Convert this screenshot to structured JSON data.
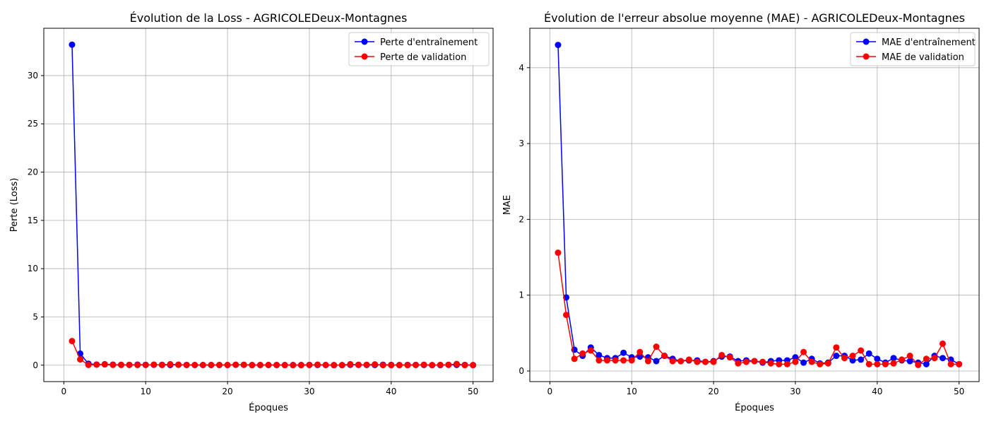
{
  "chart_data": [
    {
      "type": "line",
      "title": "Évolution de la Loss - AGRICOLEDeux-Montagnes",
      "xlabel": "Époques",
      "ylabel": "Perte (Loss)",
      "xlim": [
        -2.45,
        52.45
      ],
      "ylim": [
        -1.7,
        34.9
      ],
      "xticks": [
        0,
        10,
        20,
        30,
        40,
        50
      ],
      "yticks": [
        0,
        5,
        10,
        15,
        20,
        25,
        30
      ],
      "grid": true,
      "legend_position": "top-right",
      "x": [
        1,
        2,
        3,
        4,
        5,
        6,
        7,
        8,
        9,
        10,
        11,
        12,
        13,
        14,
        15,
        16,
        17,
        18,
        19,
        20,
        21,
        22,
        23,
        24,
        25,
        26,
        27,
        28,
        29,
        30,
        31,
        32,
        33,
        34,
        35,
        36,
        37,
        38,
        39,
        40,
        41,
        42,
        43,
        44,
        45,
        46,
        47,
        48,
        49,
        50
      ],
      "series": [
        {
          "name": "Perte d'entraînement",
          "color": "#0000ff",
          "values": [
            33.2,
            1.2,
            0.15,
            0.07,
            0.1,
            0.06,
            0.04,
            0.03,
            0.06,
            0.04,
            0.04,
            0.04,
            0.02,
            0.05,
            0.03,
            0.02,
            0.02,
            0.02,
            0.02,
            0.02,
            0.04,
            0.04,
            0.02,
            0.02,
            0.02,
            0.02,
            0.02,
            0.02,
            0.02,
            0.03,
            0.02,
            0.02,
            0.01,
            0.01,
            0.04,
            0.04,
            0.02,
            0.02,
            0.05,
            0.03,
            0.02,
            0.03,
            0.03,
            0.02,
            0.01,
            0.01,
            0.04,
            0.03,
            0.03,
            0.01
          ]
        },
        {
          "name": "Perte de validation",
          "color": "#ff0000",
          "values": [
            2.5,
            0.6,
            0.03,
            0.06,
            0.08,
            0.03,
            0.03,
            0.03,
            0.02,
            0.02,
            0.06,
            0.02,
            0.1,
            0.04,
            0.02,
            0.02,
            0.02,
            0.02,
            0.02,
            0.02,
            0.05,
            0.04,
            0.01,
            0.02,
            0.02,
            0.02,
            0.01,
            0.01,
            0.01,
            0.02,
            0.06,
            0.02,
            0.01,
            0.01,
            0.1,
            0.03,
            0.04,
            0.08,
            0.01,
            0.01,
            0.01,
            0.01,
            0.02,
            0.05,
            0.01,
            0.03,
            0.03,
            0.13,
            0.01,
            0.01
          ]
        }
      ]
    },
    {
      "type": "line",
      "title": "Évolution de l'erreur absolue moyenne (MAE) - AGRICOLEDeux-Montagnes",
      "xlabel": "Époques",
      "ylabel": "MAE",
      "xlim": [
        -2.45,
        52.45
      ],
      "ylim": [
        -0.14,
        4.52
      ],
      "xticks": [
        0,
        10,
        20,
        30,
        40,
        50
      ],
      "yticks": [
        0,
        1,
        2,
        3,
        4
      ],
      "grid": true,
      "legend_position": "top-right",
      "x": [
        1,
        2,
        3,
        4,
        5,
        6,
        7,
        8,
        9,
        10,
        11,
        12,
        13,
        14,
        15,
        16,
        17,
        18,
        19,
        20,
        21,
        22,
        23,
        24,
        25,
        26,
        27,
        28,
        29,
        30,
        31,
        32,
        33,
        34,
        35,
        36,
        37,
        38,
        39,
        40,
        41,
        42,
        43,
        44,
        45,
        46,
        47,
        48,
        49,
        50
      ],
      "series": [
        {
          "name": "MAE d'entraînement",
          "color": "#0000ff",
          "values": [
            4.3,
            0.97,
            0.28,
            0.2,
            0.31,
            0.21,
            0.17,
            0.17,
            0.24,
            0.18,
            0.19,
            0.18,
            0.13,
            0.2,
            0.16,
            0.13,
            0.14,
            0.14,
            0.12,
            0.13,
            0.19,
            0.19,
            0.13,
            0.14,
            0.13,
            0.11,
            0.13,
            0.14,
            0.14,
            0.18,
            0.11,
            0.16,
            0.1,
            0.11,
            0.2,
            0.2,
            0.14,
            0.15,
            0.23,
            0.16,
            0.11,
            0.17,
            0.14,
            0.13,
            0.11,
            0.09,
            0.2,
            0.17,
            0.15,
            0.09
          ]
        },
        {
          "name": "MAE de validation",
          "color": "#ff0000",
          "values": [
            1.56,
            0.74,
            0.16,
            0.23,
            0.27,
            0.14,
            0.14,
            0.14,
            0.14,
            0.14,
            0.25,
            0.13,
            0.32,
            0.2,
            0.13,
            0.13,
            0.15,
            0.12,
            0.12,
            0.12,
            0.21,
            0.18,
            0.1,
            0.12,
            0.13,
            0.12,
            0.1,
            0.09,
            0.09,
            0.12,
            0.25,
            0.12,
            0.09,
            0.1,
            0.31,
            0.17,
            0.2,
            0.27,
            0.09,
            0.09,
            0.09,
            0.1,
            0.15,
            0.2,
            0.08,
            0.16,
            0.17,
            0.36,
            0.09,
            0.09
          ]
        }
      ]
    }
  ]
}
